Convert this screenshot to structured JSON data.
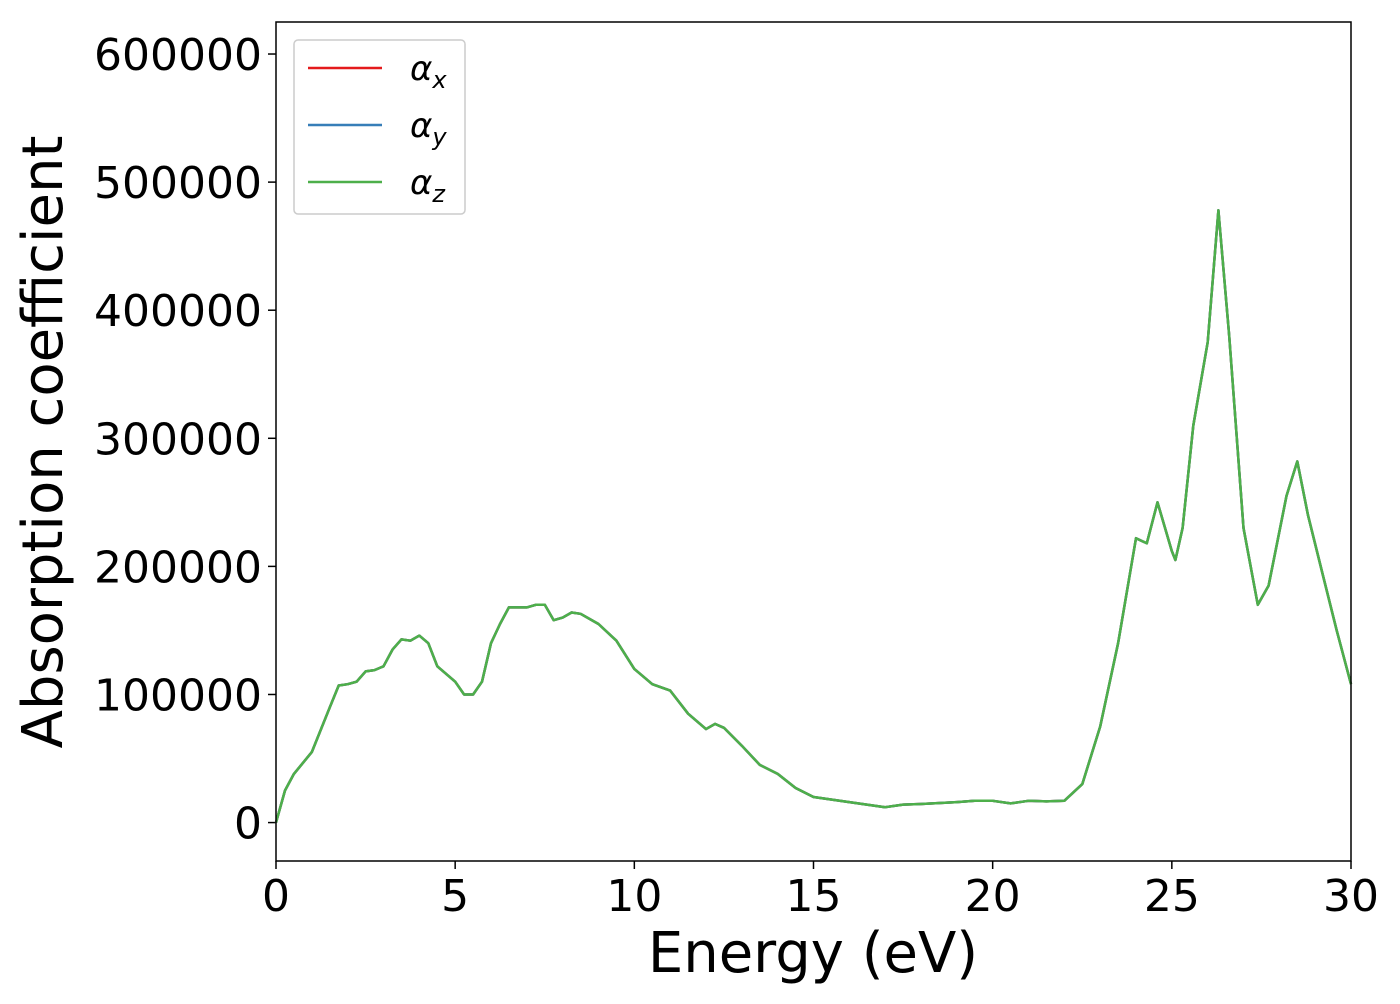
{
  "chart_data": {
    "type": "line",
    "xlabel": "Energy (eV)",
    "ylabel": "Absorption coefficient",
    "x": [
      0,
      0.25,
      0.5,
      1,
      1.5,
      1.75,
      2,
      2.25,
      2.5,
      2.75,
      3,
      3.25,
      3.5,
      3.75,
      4,
      4.25,
      4.5,
      5,
      5.25,
      5.5,
      5.75,
      6,
      6.25,
      6.5,
      7,
      7.25,
      7.5,
      7.75,
      8,
      8.25,
      8.5,
      9,
      9.5,
      10,
      10.5,
      11,
      11.5,
      12,
      12.25,
      12.5,
      13,
      13.5,
      14,
      14.5,
      15,
      16,
      17,
      17.5,
      18,
      19,
      19.5,
      20,
      20.5,
      21,
      21.5,
      22,
      22.5,
      23,
      23.5,
      24,
      24.3,
      24.6,
      25,
      25.1,
      25.3,
      25.6,
      26,
      26.3,
      26.6,
      27,
      27.4,
      27.7,
      28.2,
      28.5,
      28.8,
      29.2,
      29.6,
      30
    ],
    "series": [
      {
        "name": "αx",
        "color": "#e41a1c",
        "values": [
          0,
          25000,
          38000,
          55000,
          90000,
          107000,
          108000,
          110000,
          118000,
          119000,
          122000,
          135000,
          143000,
          142000,
          146000,
          140000,
          122000,
          110000,
          100000,
          100000,
          110000,
          140000,
          155000,
          168000,
          168000,
          170000,
          170000,
          158000,
          160000,
          164000,
          163000,
          155000,
          142000,
          120000,
          108000,
          103000,
          85000,
          73000,
          77000,
          74000,
          60000,
          45000,
          38000,
          27000,
          20000,
          16000,
          12000,
          14000,
          14500,
          16000,
          17000,
          17000,
          15000,
          17000,
          16500,
          17000,
          30000,
          75000,
          140000,
          222000,
          218000,
          250000,
          212000,
          205000,
          230000,
          310000,
          375000,
          478000,
          380000,
          230000,
          170000,
          185000,
          255000,
          282000,
          240000,
          195000,
          150000,
          108000
        ]
      },
      {
        "name": "αy",
        "color": "#377eb8",
        "values": [
          0,
          25000,
          38000,
          55000,
          90000,
          107000,
          108000,
          110000,
          118000,
          119000,
          122000,
          135000,
          143000,
          142000,
          146000,
          140000,
          122000,
          110000,
          100000,
          100000,
          110000,
          140000,
          155000,
          168000,
          168000,
          170000,
          170000,
          158000,
          160000,
          164000,
          163000,
          155000,
          142000,
          120000,
          108000,
          103000,
          85000,
          73000,
          77000,
          74000,
          60000,
          45000,
          38000,
          27000,
          20000,
          16000,
          12000,
          14000,
          14500,
          16000,
          17000,
          17000,
          15000,
          17000,
          16500,
          17000,
          30000,
          75000,
          140000,
          222000,
          218000,
          250000,
          212000,
          205000,
          230000,
          310000,
          375000,
          478000,
          380000,
          230000,
          170000,
          185000,
          255000,
          282000,
          240000,
          195000,
          150000,
          108000
        ]
      },
      {
        "name": "αz",
        "color": "#4daf4a",
        "values": [
          0,
          25000,
          38000,
          55000,
          90000,
          107000,
          108000,
          110000,
          118000,
          119000,
          122000,
          135000,
          143000,
          142000,
          146000,
          140000,
          122000,
          110000,
          100000,
          100000,
          110000,
          140000,
          155000,
          168000,
          168000,
          170000,
          170000,
          158000,
          160000,
          164000,
          163000,
          155000,
          142000,
          120000,
          108000,
          103000,
          85000,
          73000,
          77000,
          74000,
          60000,
          45000,
          38000,
          27000,
          20000,
          16000,
          12000,
          14000,
          14500,
          16000,
          17000,
          17000,
          15000,
          17000,
          16500,
          17000,
          30000,
          75000,
          140000,
          222000,
          218000,
          250000,
          212000,
          205000,
          230000,
          310000,
          375000,
          478000,
          380000,
          230000,
          170000,
          185000,
          255000,
          282000,
          240000,
          195000,
          150000,
          108000
        ]
      }
    ],
    "xlim": [
      0,
      30
    ],
    "xticks": [
      0,
      5,
      10,
      15,
      20,
      25,
      30
    ],
    "ylim": [
      -30000,
      625000
    ],
    "yticks": [
      0,
      100000,
      200000,
      300000,
      400000,
      500000,
      600000
    ],
    "legend": "upper-left"
  }
}
